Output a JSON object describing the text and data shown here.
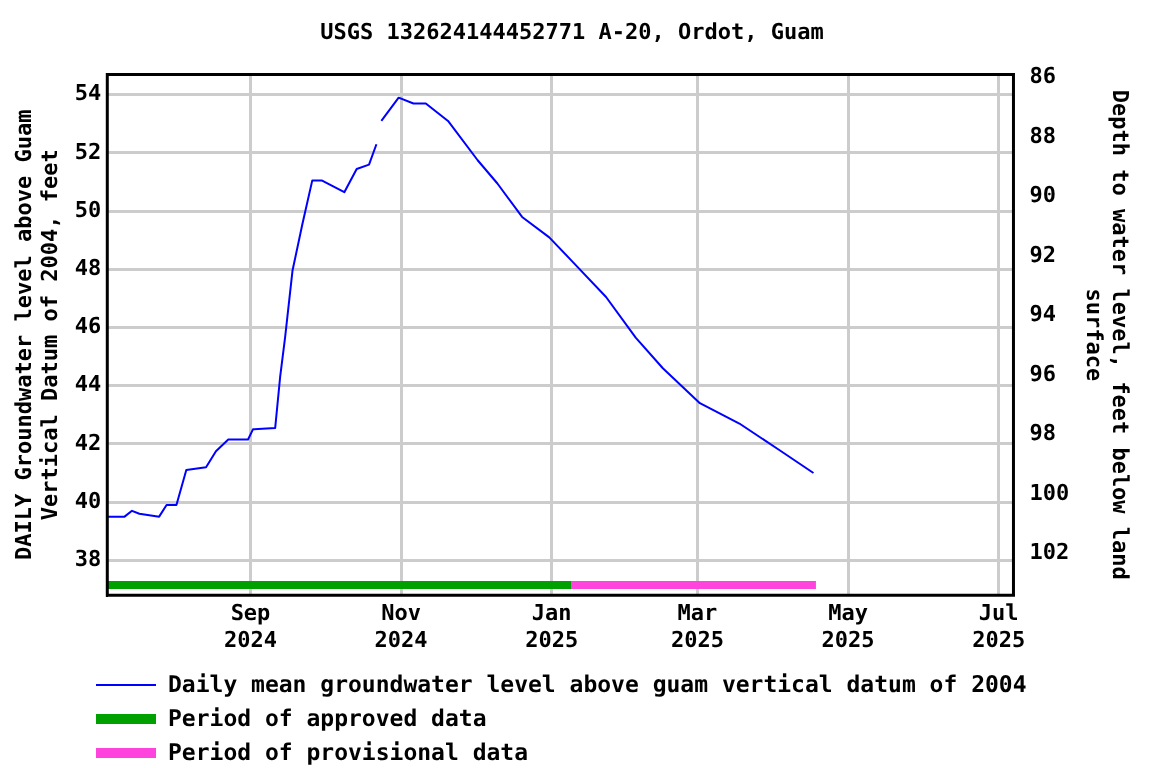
{
  "chart_data": {
    "type": "line",
    "title": "USGS 132624144452771 A-20, Ordot, Guam",
    "ylabel": "DAILY Groundwater level above Guam Vertical Datum of 2004, feet",
    "y2label": "Depth to water level, feet below land surface",
    "xlim": [
      "2024-07-05",
      "2025-07-07"
    ],
    "xticks": [
      {
        "value": "2024-09-01",
        "label": "Sep 2024"
      },
      {
        "value": "2024-11-01",
        "label": "Nov 2024"
      },
      {
        "value": "2025-01-01",
        "label": "Jan 2025"
      },
      {
        "value": "2025-03-01",
        "label": "Mar 2025"
      },
      {
        "value": "2025-05-01",
        "label": "May 2025"
      },
      {
        "value": "2025-07-01",
        "label": "Jul 2025"
      }
    ],
    "ylim": [
      36.8,
      54.7
    ],
    "yticks": [
      38,
      40,
      42,
      44,
      46,
      48,
      50,
      52,
      54
    ],
    "y2lim": [
      103.4,
      85.9
    ],
    "y2ticks": [
      86,
      88,
      90,
      92,
      94,
      96,
      98,
      100,
      102
    ],
    "grid": true,
    "legend": "bottom",
    "marker": "none",
    "line_style": "solid",
    "x": [
      "2024-07-05",
      "2024-07-12",
      "2024-07-15",
      "2024-07-18",
      "2024-07-26",
      "2024-07-29",
      "2024-08-02",
      "2024-08-06",
      "2024-08-14",
      "2024-08-18",
      "2024-08-23",
      "2024-08-31",
      "2024-09-02",
      "2024-09-11",
      "2024-09-13",
      "2024-09-15",
      "2024-09-18",
      "2024-09-22",
      "2024-09-26",
      "2024-09-30",
      "2024-10-09",
      "2024-10-14",
      "2024-10-19",
      "2024-10-22",
      "2024-10-23",
      "2024-10-24",
      "2024-10-31",
      "2024-11-06",
      "2024-11-11",
      "2024-11-20",
      "2024-12-02",
      "2024-12-10",
      "2024-12-20",
      "2024-12-31",
      "2025-01-09",
      "2025-01-23",
      "2025-02-04",
      "2025-02-15",
      "2025-03-02",
      "2025-03-18",
      "2025-04-03",
      "2025-04-17"
    ],
    "series": [
      {
        "name": "Daily mean groundwater level above guam vertical datum of 2004",
        "color": "#0000ff",
        "values": [
          39.5,
          39.5,
          39.7,
          39.6,
          39.5,
          39.9,
          39.9,
          41.1,
          41.2,
          41.75,
          42.15,
          42.15,
          42.5,
          42.55,
          44.3,
          45.65,
          47.95,
          49.55,
          51.05,
          51.05,
          50.65,
          51.45,
          51.6,
          52.3,
          null,
          53.1,
          53.9,
          53.7,
          53.7,
          53.1,
          51.75,
          50.95,
          49.8,
          49.1,
          48.3,
          47.05,
          45.65,
          44.6,
          43.4,
          42.7,
          41.8,
          41.0
        ]
      },
      {
        "name": "Period of approved data",
        "color": "#00a000",
        "x": [
          "2024-07-05",
          "2025-01-09"
        ],
        "values": [
          37.15,
          37.15
        ]
      },
      {
        "name": "Period of provisional data",
        "color": "#ff44dd",
        "x": [
          "2025-01-09",
          "2025-04-18"
        ],
        "values": [
          37.15,
          37.15
        ]
      }
    ]
  }
}
